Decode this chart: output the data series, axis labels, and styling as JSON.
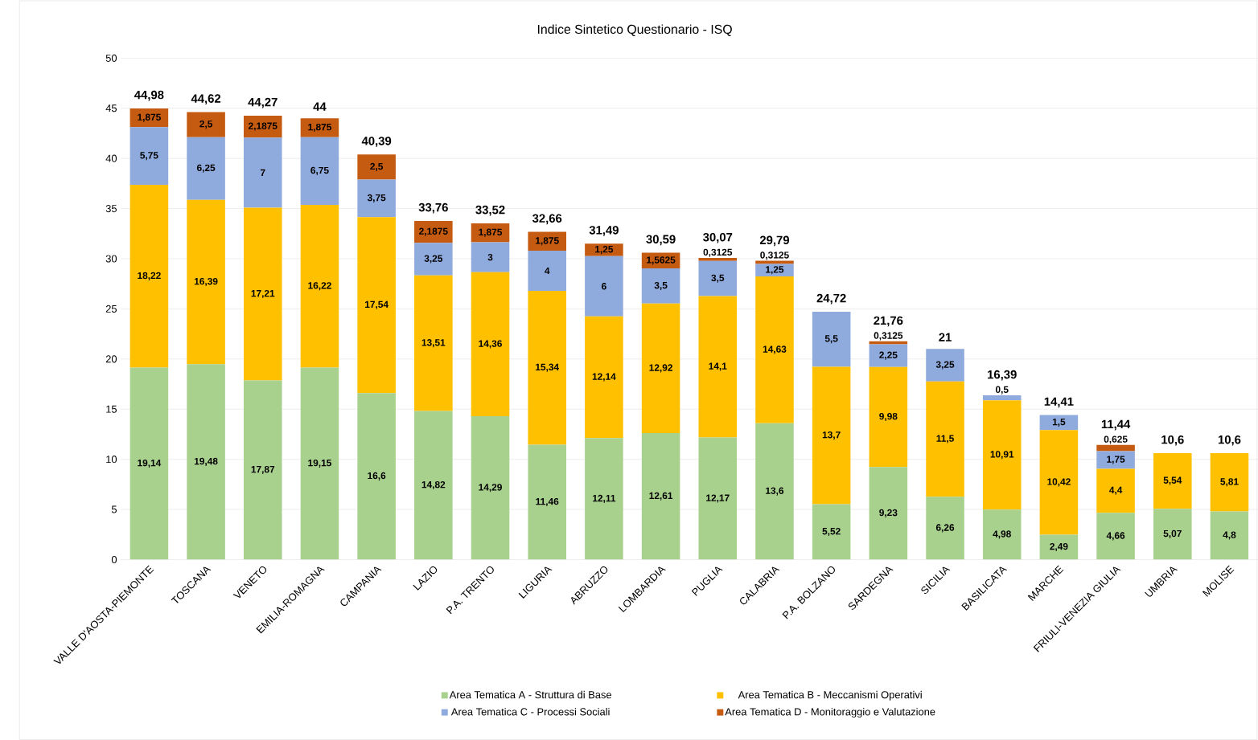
{
  "chart_data": {
    "type": "bar",
    "stacked": true,
    "title": "Indice Sintetico Questionario - ISQ",
    "categories": [
      "VALLE D'AOSTA-PIEMONTE",
      "TOSCANA",
      "VENETO",
      "EMILIA-ROMAGNA",
      "CAMPANIA",
      "LAZIO",
      "P.A. TRENTO",
      "LIGURIA",
      "ABRUZZO",
      "LOMBARDIA",
      "PUGLIA",
      "CALABRIA",
      "P.A. BOLZANO",
      "SARDEGNA",
      "SICILIA",
      "BASILICATA",
      "MARCHE",
      "FRIULI-VENEZIA GIULIA",
      "UMBRIA",
      "MOLISE"
    ],
    "series": [
      {
        "name": "Area Tematica A - Struttura di Base",
        "color": "#a9d18e",
        "values": [
          19.14,
          19.48,
          17.87,
          19.15,
          16.6,
          14.82,
          14.29,
          11.46,
          12.11,
          12.61,
          12.17,
          13.6,
          5.52,
          9.23,
          6.26,
          4.98,
          2.49,
          4.66,
          5.07,
          4.8
        ],
        "value_labels": [
          "19,14",
          "19,48",
          "17,87",
          "19,15",
          "16,6",
          "14,82",
          "14,29",
          "11,46",
          "12,11",
          "12,61",
          "12,17",
          "13,6",
          "5,52",
          "9,23",
          "6,26",
          "4,98",
          "2,49",
          "4,66",
          "5,07",
          "4,8"
        ]
      },
      {
        "name": "Area Tematica B - Meccanismi Operativi",
        "color": "#ffc000",
        "values": [
          18.22,
          16.39,
          17.21,
          16.22,
          17.54,
          13.51,
          14.36,
          15.34,
          12.14,
          12.92,
          14.1,
          14.63,
          13.7,
          9.98,
          11.5,
          10.91,
          10.42,
          4.4,
          5.54,
          5.81
        ],
        "value_labels": [
          "18,22",
          "16,39",
          "17,21",
          "16,22",
          "17,54",
          "13,51",
          "14,36",
          "15,34",
          "12,14",
          "12,92",
          "14,1",
          "14,63",
          "13,7",
          "9,98",
          "11,5",
          "10,91",
          "10,42",
          "4,4",
          "5,54",
          "5,81"
        ]
      },
      {
        "name": "Area Tematica C - Processi Sociali",
        "color": "#8faadc",
        "values": [
          5.75,
          6.25,
          7,
          6.75,
          3.75,
          3.25,
          3,
          4,
          6,
          3.5,
          3.5,
          1.25,
          5.5,
          2.25,
          3.25,
          0.5,
          1.5,
          1.75,
          null,
          null
        ],
        "value_labels": [
          "5,75",
          "6,25",
          "7",
          "6,75",
          "3,75",
          "3,25",
          "3",
          "4",
          "6",
          "3,5",
          "3,5",
          "1,25",
          "5,5",
          "2,25",
          "3,25",
          "0,5",
          "1,5",
          "1,75",
          null,
          null
        ]
      },
      {
        "name": "Area Tematica D - Monitoraggio e Valutazione",
        "color": "#c55a11",
        "values": [
          1.875,
          2.5,
          2.1875,
          1.875,
          2.5,
          2.1875,
          1.875,
          1.875,
          1.25,
          1.5625,
          0.3125,
          0.3125,
          null,
          0.3125,
          null,
          null,
          null,
          0.625,
          null,
          null
        ],
        "value_labels": [
          "1,875",
          "2,5",
          "2,1875",
          "1,875",
          "2,5",
          "2,1875",
          "1,875",
          "1,875",
          "1,25",
          "1,5625",
          "0,3125",
          "0,3125",
          null,
          "0,3125",
          null,
          null,
          null,
          "0,625",
          null,
          null
        ]
      }
    ],
    "totals": [
      "44,98",
      "44,62",
      "44,27",
      "44",
      "40,39",
      "33,76",
      "33,52",
      "32,66",
      "31,49",
      "30,59",
      "30,07",
      "29,79",
      "24,72",
      "21,76",
      "21",
      "16,39",
      "14,41",
      "11,44",
      "10,6",
      "10,6"
    ],
    "ylim": [
      0,
      50
    ],
    "yticks": [
      0,
      5,
      10,
      15,
      20,
      25,
      30,
      35,
      40,
      45,
      50
    ],
    "grid": "y",
    "legend": "bottom"
  }
}
